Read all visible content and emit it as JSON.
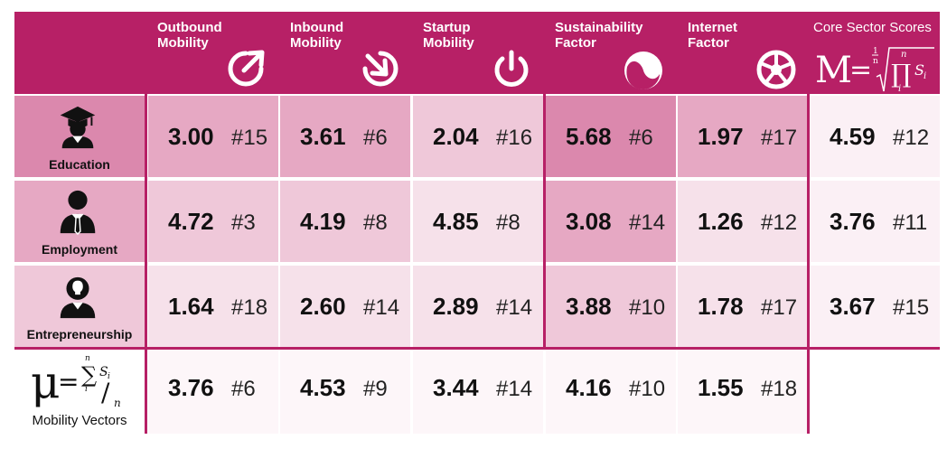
{
  "columns": [
    {
      "label": "Outbound\nMobility",
      "icon": "outbound-arrow-icon"
    },
    {
      "label": "Inbound\nMobility",
      "icon": "inbound-arrow-icon"
    },
    {
      "label": "Startup\nMobility",
      "icon": "power-icon"
    },
    {
      "label": "Sustainability\nFactor",
      "icon": "yin-yang-icon"
    },
    {
      "label": "Internet\nFactor",
      "icon": "globe-network-icon"
    }
  ],
  "core": {
    "label": "Core Sector Scores",
    "formula_icon": "geometric-mean-formula"
  },
  "rows": [
    {
      "label": "Education",
      "icon": "graduate-icon",
      "cells": [
        {
          "value": "3.00",
          "rank": "#15"
        },
        {
          "value": "3.61",
          "rank": "#6"
        },
        {
          "value": "2.04",
          "rank": "#16"
        },
        {
          "value": "5.68",
          "rank": "#6"
        },
        {
          "value": "1.97",
          "rank": "#17"
        }
      ],
      "core": {
        "value": "4.59",
        "rank": "#12"
      }
    },
    {
      "label": "Employment",
      "icon": "employee-icon",
      "cells": [
        {
          "value": "4.72",
          "rank": "#3"
        },
        {
          "value": "4.19",
          "rank": "#8"
        },
        {
          "value": "4.85",
          "rank": "#8"
        },
        {
          "value": "3.08",
          "rank": "#14"
        },
        {
          "value": "1.26",
          "rank": "#12"
        }
      ],
      "core": {
        "value": "3.76",
        "rank": "#11"
      }
    },
    {
      "label": "Entrepreneurship",
      "icon": "entrepreneur-lightbulb-icon",
      "cells": [
        {
          "value": "1.64",
          "rank": "#18"
        },
        {
          "value": "2.60",
          "rank": "#14"
        },
        {
          "value": "2.89",
          "rank": "#14"
        },
        {
          "value": "3.88",
          "rank": "#10"
        },
        {
          "value": "1.78",
          "rank": "#17"
        }
      ],
      "core": {
        "value": "3.67",
        "rank": "#15"
      }
    }
  ],
  "mobility_vectors": {
    "label": "Mobility Vectors",
    "formula_icon": "arithmetic-mean-formula",
    "cells": [
      {
        "value": "3.76",
        "rank": "#6"
      },
      {
        "value": "4.53",
        "rank": "#9"
      },
      {
        "value": "3.44",
        "rank": "#14"
      },
      {
        "value": "4.16",
        "rank": "#10"
      },
      {
        "value": "1.55",
        "rank": "#18"
      }
    ]
  },
  "formula_text": {
    "mu": "μ",
    "eq": "=",
    "sigma": "∑",
    "n_top": "n",
    "i_bottom": "i",
    "s_sub": "S",
    "s_idx": "i",
    "slash": "/",
    "n_den": "n",
    "M": "M",
    "root_idx_num": "1",
    "root_idx_den": "n",
    "pi": "∏"
  },
  "colors": {
    "header": "#b72066",
    "cell_shades": [
      "#db88ad",
      "#e6a8c3",
      "#efc8d9",
      "#f6e1ea",
      "#fbf0f5",
      "#fdf6f9"
    ]
  }
}
